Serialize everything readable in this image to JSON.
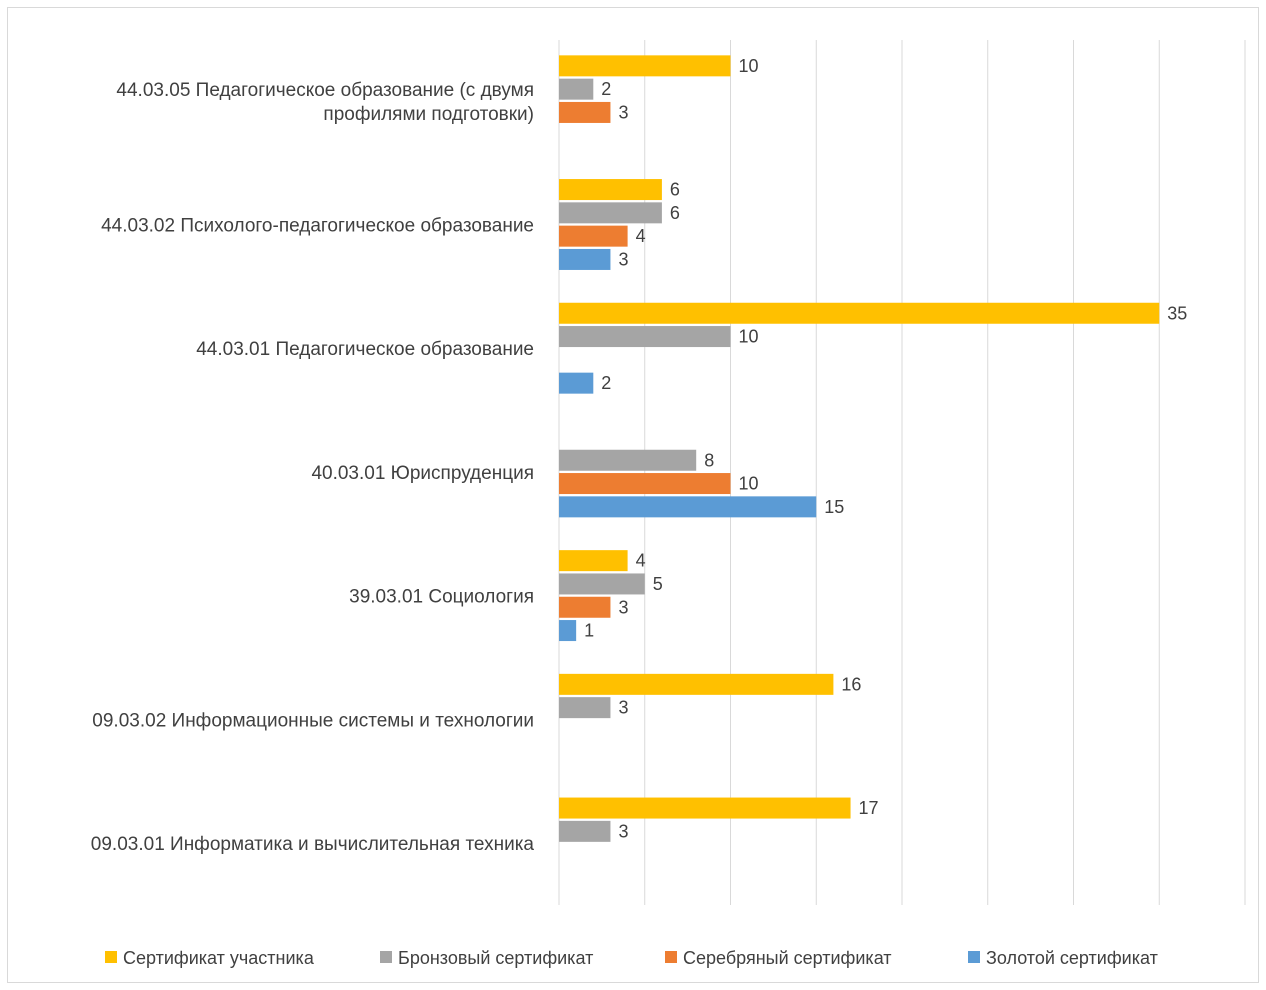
{
  "chart_data": {
    "type": "bar",
    "orientation": "horizontal",
    "categories": [
      "09.03.01 Информатика и вычислительная техника",
      "09.03.02 Информационные системы и технологии",
      "39.03.01 Социология",
      "40.03.01 Юриспруденция",
      "44.03.01 Педагогическое образование",
      "44.03.02 Психолого-педагогическое образование",
      "44.03.05 Педагогическое образование (с двумя профилями подготовки)"
    ],
    "category_lines": [
      [
        "09.03.01 Информатика и вычислительная техника"
      ],
      [
        "09.03.02 Информационные системы и технологии"
      ],
      [
        "39.03.01 Социология"
      ],
      [
        "40.03.01 Юриспруденция"
      ],
      [
        "44.03.01 Педагогическое образование"
      ],
      [
        "44.03.02 Психолого-педагогическое образование"
      ],
      [
        "44.03.05 Педагогическое образование (с двумя",
        "профилями подготовки)"
      ]
    ],
    "series": [
      {
        "name": "Золотой сертификат",
        "color": "#5b9bd5",
        "values": [
          null,
          null,
          1,
          15,
          2,
          3,
          null
        ]
      },
      {
        "name": "Серебряный сертификат",
        "color": "#ed7d31",
        "values": [
          null,
          null,
          3,
          10,
          null,
          4,
          3
        ]
      },
      {
        "name": "Бронзовый сертификат",
        "color": "#a5a5a5",
        "values": [
          3,
          3,
          5,
          8,
          10,
          6,
          2
        ]
      },
      {
        "name": "Сертификат участника",
        "color": "#ffc000",
        "values": [
          17,
          16,
          4,
          null,
          35,
          6,
          10
        ]
      }
    ],
    "legend_order": [
      "Сертификат участника",
      "Бронзовый сертификат",
      "Серебряный сертификат",
      "Золотой сертификат"
    ],
    "xlim": [
      0,
      40
    ],
    "x_gridline_step": 5,
    "grid": true,
    "data_labels": true,
    "legend_position": "bottom",
    "title": "",
    "xlabel": "",
    "ylabel": ""
  }
}
